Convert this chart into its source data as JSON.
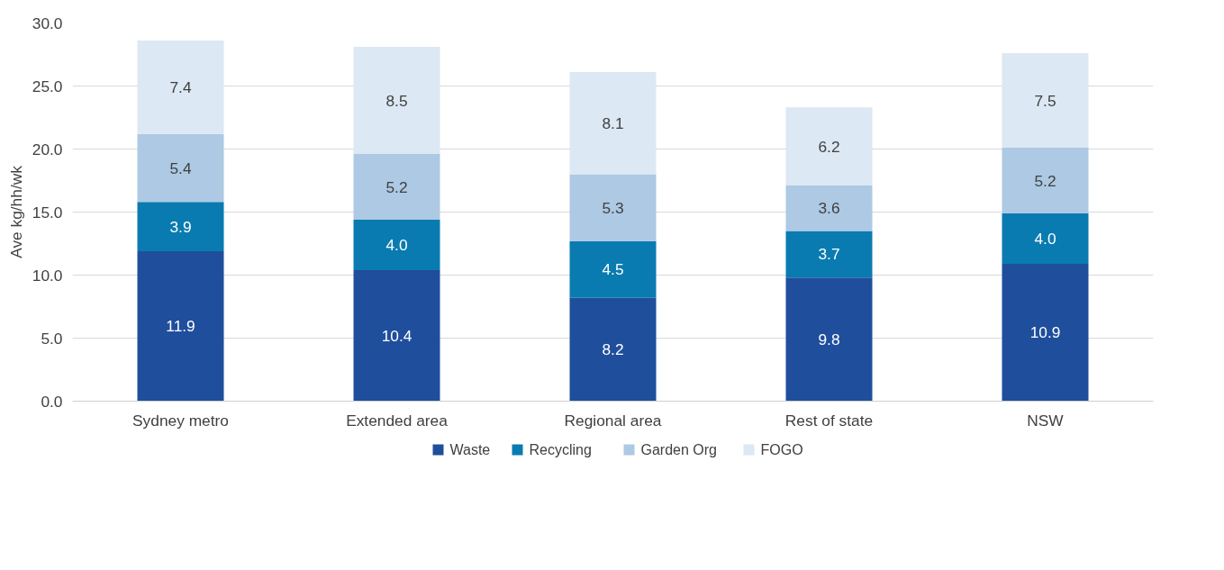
{
  "chart_data": {
    "type": "bar",
    "stacked": true,
    "ylabel": "Ave kg/hh/wk",
    "categories": [
      "Sydney metro",
      "Extended area",
      "Regional area",
      "Rest of state",
      "NSW"
    ],
    "series": [
      {
        "name": "Waste",
        "color": "#1f4e9c",
        "values": [
          11.9,
          10.4,
          8.2,
          9.8,
          10.9
        ],
        "value_labels": [
          "11.9",
          "10.4",
          "8.2",
          "9.8",
          "10.9"
        ]
      },
      {
        "name": "Recycling",
        "color": "#0a7bb0",
        "values": [
          3.9,
          4.0,
          4.5,
          3.7,
          4.0
        ],
        "value_labels": [
          "3.9",
          "4.0",
          "4.5",
          "3.7",
          "4.0"
        ]
      },
      {
        "name": "Garden Org",
        "color": "#adc9e3",
        "values": [
          5.4,
          5.2,
          5.3,
          3.6,
          5.2
        ],
        "value_labels": [
          "5.4",
          "5.2",
          "5.3",
          "3.6",
          "5.2"
        ]
      },
      {
        "name": "FOGO",
        "color": "#dce8f3",
        "values": [
          7.4,
          8.5,
          8.1,
          6.2,
          7.5
        ],
        "value_labels": [
          "7.4",
          "8.5",
          "8.1",
          "6.2",
          "7.5"
        ]
      }
    ],
    "ylim": [
      0,
      30
    ],
    "yticks": [
      {
        "value": 0,
        "label": "0.0"
      },
      {
        "value": 5,
        "label": "5.0"
      },
      {
        "value": 10,
        "label": "10.0"
      },
      {
        "value": 15,
        "label": "15.0"
      },
      {
        "value": 20,
        "label": "20.0"
      },
      {
        "value": 25,
        "label": "25.0"
      },
      {
        "value": 30,
        "label": "30.0"
      }
    ],
    "grid": "y",
    "legend": "bottom"
  }
}
